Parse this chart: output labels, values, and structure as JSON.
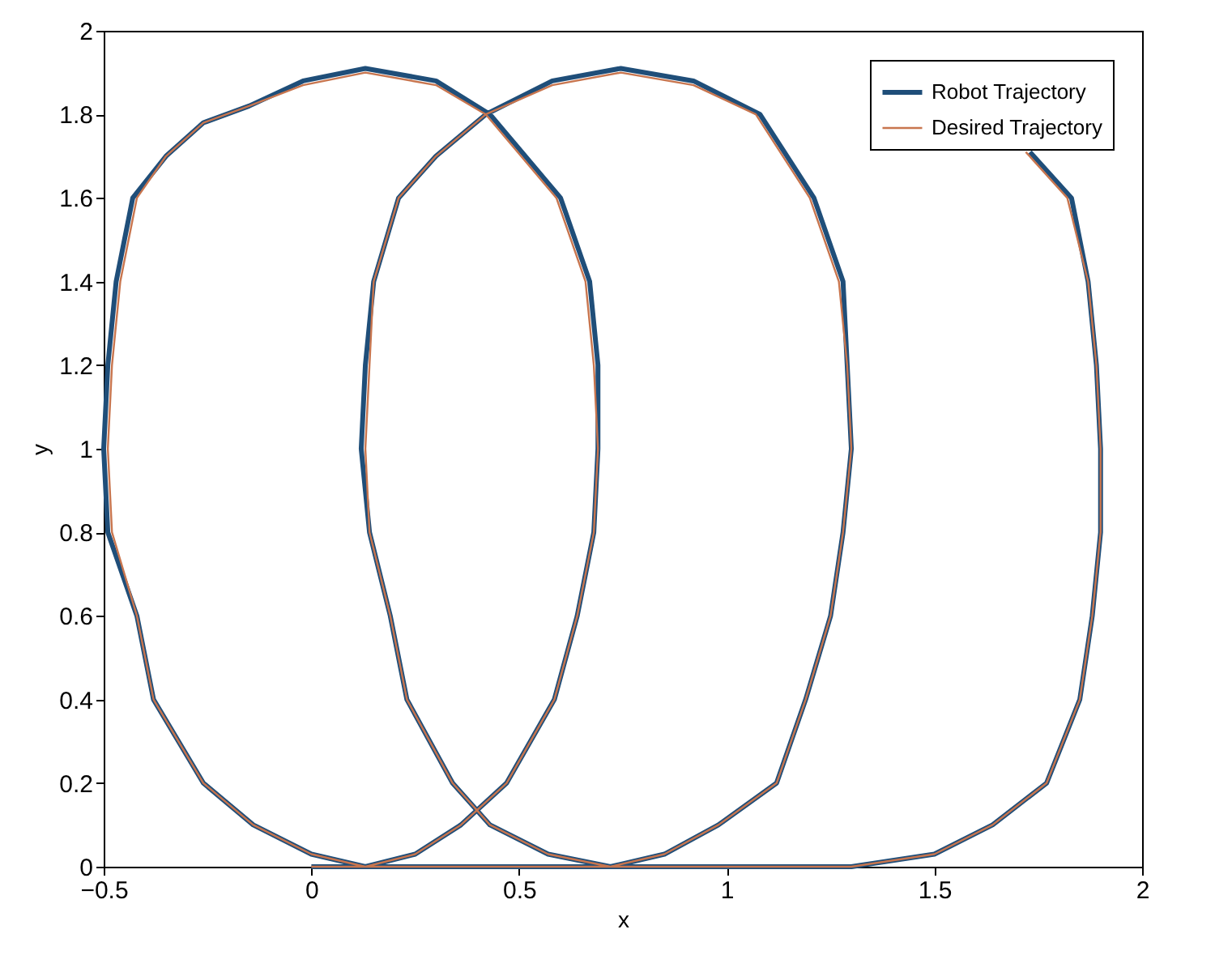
{
  "chart_data": {
    "type": "line",
    "xlabel": "x",
    "ylabel": "y",
    "xlim": [
      -0.5,
      2
    ],
    "xticks": [
      -0.5,
      0,
      0.5,
      1,
      1.5,
      2
    ],
    "ylim": [
      0,
      2
    ],
    "yticks": [
      0,
      0.2,
      0.4,
      0.6,
      0.8,
      1,
      1.2,
      1.4,
      1.6,
      1.8,
      2
    ],
    "grid": false,
    "legend": "top right",
    "marker": "none",
    "line_style": "solid",
    "series": [
      {
        "name": "Robot Trajectory",
        "color": "#1f4e79",
        "x": [
          0,
          0.07,
          0.13,
          0.25,
          0.36,
          0.47,
          0.585,
          0.64,
          0.68,
          0.69,
          0.69,
          0.67,
          0.6,
          0.43,
          0.3,
          0.13,
          -0.02,
          -0.15,
          -0.26,
          -0.35,
          -0.43,
          -0.47,
          -0.49,
          -0.5,
          -0.49,
          -0.42,
          -0.38,
          -0.26,
          -0.14,
          0,
          0.13,
          0.3,
          0.5,
          0.72,
          0.85,
          0.98,
          1.12,
          1.19,
          1.25,
          1.28,
          1.3,
          1.29,
          1.28,
          1.21,
          1.08,
          0.92,
          0.745,
          0.58,
          0.42,
          0.3,
          0.21,
          0.15,
          0.13,
          0.12,
          0.14,
          0.19,
          0.23,
          0.34,
          0.43,
          0.57,
          0.72,
          1,
          1.3,
          1.5,
          1.64,
          1.77,
          1.85,
          1.88,
          1.9,
          1.9,
          1.89,
          1.87,
          1.83,
          1.73
        ],
        "values": [
          0,
          0,
          0,
          0.03,
          0.1,
          0.2,
          0.4,
          0.6,
          0.8,
          1,
          1.2,
          1.4,
          1.6,
          1.8,
          1.88,
          1.91,
          1.88,
          1.82,
          1.78,
          1.7,
          1.6,
          1.4,
          1.2,
          1,
          0.8,
          0.6,
          0.4,
          0.2,
          0.1,
          0.03,
          0,
          0,
          0,
          0,
          0.03,
          0.1,
          0.2,
          0.4,
          0.6,
          0.8,
          1,
          1.2,
          1.4,
          1.6,
          1.8,
          1.88,
          1.91,
          1.88,
          1.8,
          1.7,
          1.6,
          1.4,
          1.2,
          1,
          0.8,
          0.6,
          0.4,
          0.2,
          0.1,
          0.03,
          0,
          0,
          0,
          0.03,
          0.1,
          0.2,
          0.4,
          0.6,
          0.8,
          1,
          1.2,
          1.4,
          1.6,
          1.71
        ]
      },
      {
        "name": "Desired Trajectory",
        "color": "#c8754e",
        "x": [
          0,
          0.07,
          0.13,
          0.25,
          0.36,
          0.47,
          0.585,
          0.64,
          0.68,
          0.69,
          0.68,
          0.66,
          0.59,
          0.42,
          0.3,
          0.13,
          -0.02,
          -0.15,
          -0.26,
          -0.35,
          -0.42,
          -0.46,
          -0.48,
          -0.49,
          -0.48,
          -0.42,
          -0.38,
          -0.26,
          -0.14,
          0,
          0.13,
          0.3,
          0.5,
          0.72,
          0.85,
          0.98,
          1.12,
          1.19,
          1.25,
          1.28,
          1.3,
          1.29,
          1.27,
          1.2,
          1.07,
          0.92,
          0.745,
          0.58,
          0.42,
          0.3,
          0.21,
          0.15,
          0.14,
          0.13,
          0.14,
          0.19,
          0.23,
          0.34,
          0.43,
          0.57,
          0.72,
          1,
          1.3,
          1.5,
          1.64,
          1.77,
          1.85,
          1.88,
          1.9,
          1.9,
          1.89,
          1.87,
          1.82,
          1.72
        ],
        "values": [
          0,
          0,
          0,
          0.03,
          0.1,
          0.2,
          0.4,
          0.6,
          0.8,
          1,
          1.2,
          1.4,
          1.6,
          1.8,
          1.87,
          1.9,
          1.87,
          1.82,
          1.78,
          1.7,
          1.6,
          1.4,
          1.2,
          1,
          0.8,
          0.6,
          0.4,
          0.2,
          0.1,
          0.03,
          0,
          0,
          0,
          0,
          0.03,
          0.1,
          0.2,
          0.4,
          0.6,
          0.8,
          1,
          1.2,
          1.4,
          1.6,
          1.8,
          1.87,
          1.9,
          1.87,
          1.8,
          1.7,
          1.6,
          1.4,
          1.2,
          1,
          0.8,
          0.6,
          0.4,
          0.2,
          0.1,
          0.03,
          0,
          0,
          0,
          0.03,
          0.1,
          0.2,
          0.4,
          0.6,
          0.8,
          1,
          1.2,
          1.4,
          1.6,
          1.71
        ]
      }
    ]
  }
}
